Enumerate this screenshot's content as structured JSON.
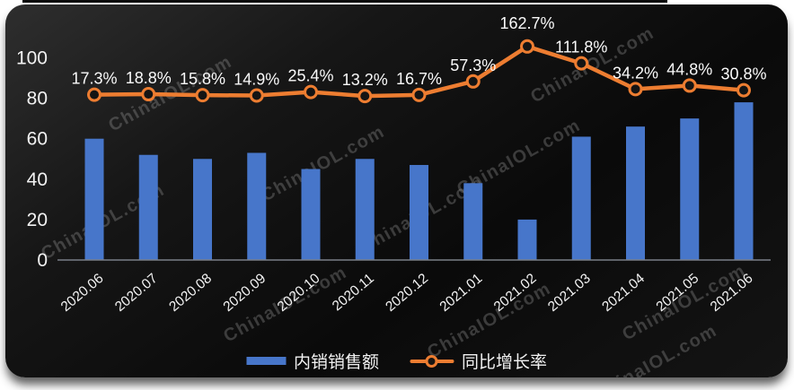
{
  "watermark": {
    "text": "ChinaIOL.com"
  },
  "colors": {
    "bar": "#4776CA",
    "line": "#ED7D31",
    "panel_background": "#121212",
    "text": "#F2F2F2",
    "axis": "#7A7F88",
    "watermark": "#A8A8A8"
  },
  "legend": [
    {
      "label": "内销销售额",
      "type": "bar",
      "color": "#4776CA"
    },
    {
      "label": "同比增长率",
      "type": "line",
      "color": "#ED7D31"
    }
  ],
  "chart_data": {
    "type": "bar",
    "subtype": "bar-line-combo",
    "title": "",
    "categories": [
      "2020.06",
      "2020.07",
      "2020.08",
      "2020.09",
      "2020.10",
      "2020.11",
      "2020.12",
      "2021.01",
      "2021.02",
      "2021.03",
      "2021.04",
      "2021.05",
      "2021.06"
    ],
    "series": [
      {
        "name": "内销销售额",
        "type": "bar",
        "axis": "primary",
        "values": [
          60,
          52,
          50,
          53,
          45,
          50,
          47,
          38,
          20,
          61,
          66,
          70,
          78
        ]
      },
      {
        "name": "同比增长率",
        "type": "line",
        "axis": "secondary",
        "values": [
          17.3,
          18.8,
          15.8,
          14.9,
          25.4,
          13.2,
          16.7,
          57.3,
          162.7,
          111.8,
          34.2,
          44.8,
          30.8
        ],
        "labels": [
          "17.3%",
          "18.8%",
          "15.8%",
          "14.9%",
          "25.4%",
          "13.2%",
          "16.7%",
          "57.3%",
          "162.7%",
          "111.8%",
          "34.2%",
          "44.8%",
          "30.8%"
        ],
        "labels_visible": true
      }
    ],
    "y_axis": {
      "ticks": [
        0,
        20,
        40,
        60,
        80,
        100
      ],
      "ylim": [
        0,
        100
      ],
      "side": "left"
    },
    "xlabel": "",
    "ylabel": "",
    "x_tick_rotation": -40,
    "grid": false,
    "legend_position": "bottom"
  }
}
